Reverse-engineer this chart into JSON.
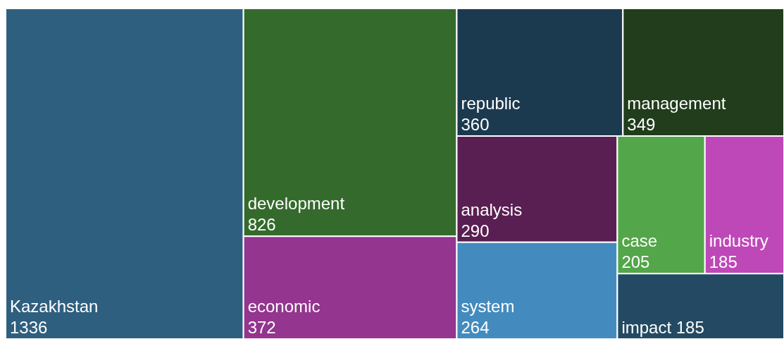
{
  "chart_data": {
    "type": "other",
    "data_labels": true,
    "categories": [
      "Kazakhstan",
      "development",
      "economic",
      "republic",
      "management",
      "analysis",
      "system",
      "case",
      "industry",
      "impact"
    ],
    "values": [
      1336,
      826,
      372,
      360,
      349,
      290,
      264,
      205,
      185,
      185
    ],
    "colors": [
      "#2e5f7f",
      "#356a2d",
      "#94358f",
      "#1c3a4f",
      "#213d1c",
      "#5a1f52",
      "#438bbf",
      "#53a64a",
      "#bf48b8",
      "#244a63"
    ]
  }
}
